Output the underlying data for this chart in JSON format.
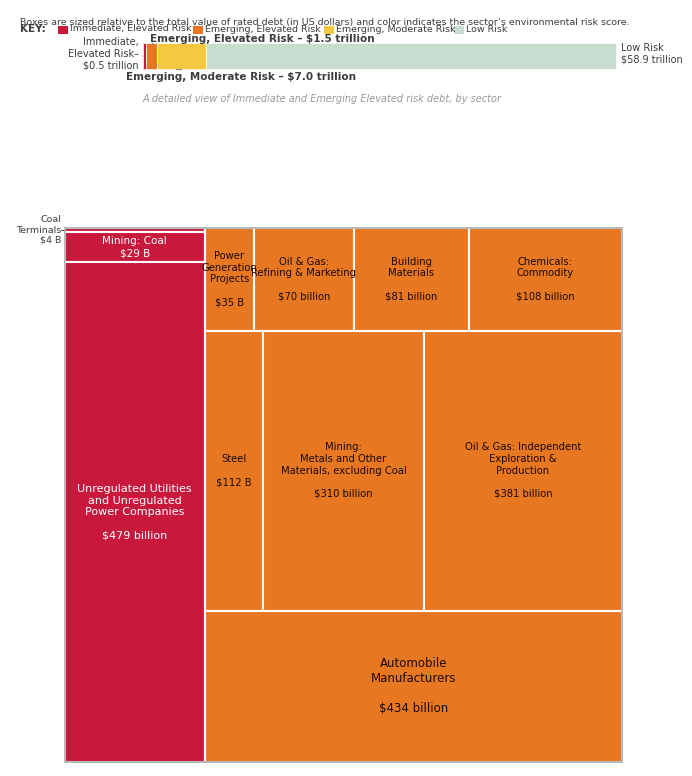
{
  "bg_color": "#FFFFFF",
  "colors": {
    "immediate": "#C8193C",
    "emerging_elevated": "#E87722",
    "emerging_moderate": "#F5C842",
    "low": "#C8DDD0",
    "text_dark": "#3D3D3D",
    "subtitle_gray": "#999999"
  },
  "legend_items": [
    {
      "label": "Immediate, Elevated Risk",
      "color": "#C8193C"
    },
    {
      "label": "Emerging, Elevated Risk",
      "color": "#E87722"
    },
    {
      "label": "Emerging, Moderate Risk",
      "color": "#F5C842"
    },
    {
      "label": "Low Risk",
      "color": "#C8DDD0"
    }
  ],
  "bar_segments": [
    {
      "value": 0.5,
      "color": "#C8193C"
    },
    {
      "value": 1.5,
      "color": "#E87722"
    },
    {
      "value": 7.0,
      "color": "#F5C842"
    },
    {
      "value": 58.9,
      "color": "#C8DDD0"
    }
  ],
  "bar_total": 67.9,
  "imm_label": "Immediate,\nElevated Risk–\n$0.5 trillion",
  "emerg_el_label": "Emerging, Elevated Risk – $1.5 trillion",
  "emerg_mod_label": "Emerging, Moderate Risk – $7.0 trillion",
  "low_label": "Low Risk\n$58.9 trillion",
  "subtitle": "A detailed view of Immediate and Emerging Elevated risk debt, by sector",
  "left_col": {
    "items": [
      {
        "label": null,
        "outside_label": "Coal\nTerminals\n$4 B",
        "value": 4,
        "color": "#C8193C",
        "text_color": "#FFFFFF"
      },
      {
        "label": "Mining: Coal\n$29 B",
        "outside_label": null,
        "value": 29,
        "color": "#C8193C",
        "text_color": "#FFFFFF"
      },
      {
        "label": "Unregulated Utilities\nand Unregulated\nPower Companies\n\n$479 billion",
        "outside_label": null,
        "value": 479,
        "color": "#C8193C",
        "text_color": "#FFFFFF"
      }
    ],
    "total": 512
  },
  "right_col": {
    "top_row": {
      "total": 294,
      "items": [
        {
          "label": "Power\nGeneration\nProjects\n\n$35 B",
          "value": 35
        },
        {
          "label": "Oil & Gas:\nRefining & Marketing\n\n$70 billion",
          "value": 70
        },
        {
          "label": "Building\nMaterials\n\n$81 billion",
          "value": 81
        },
        {
          "label": "Chemicals:\nCommodity\n\n$108 billion",
          "value": 108
        }
      ]
    },
    "mid_row": {
      "total": 803,
      "items": [
        {
          "label": "Steel\n\n$112 B",
          "value": 112
        },
        {
          "label": "Mining:\nMetals and Other\nMaterials, excluding Coal\n\n$310 billion",
          "value": 310
        },
        {
          "label": "Oil & Gas: Independent\nExploration &\nProduction\n\n$381 billion",
          "value": 381
        }
      ]
    },
    "bot_row": {
      "total": 434,
      "items": [
        {
          "label": "Automobile\nManufacturers\n\n$434 billion",
          "value": 434
        }
      ]
    },
    "grand_total": 1531
  }
}
